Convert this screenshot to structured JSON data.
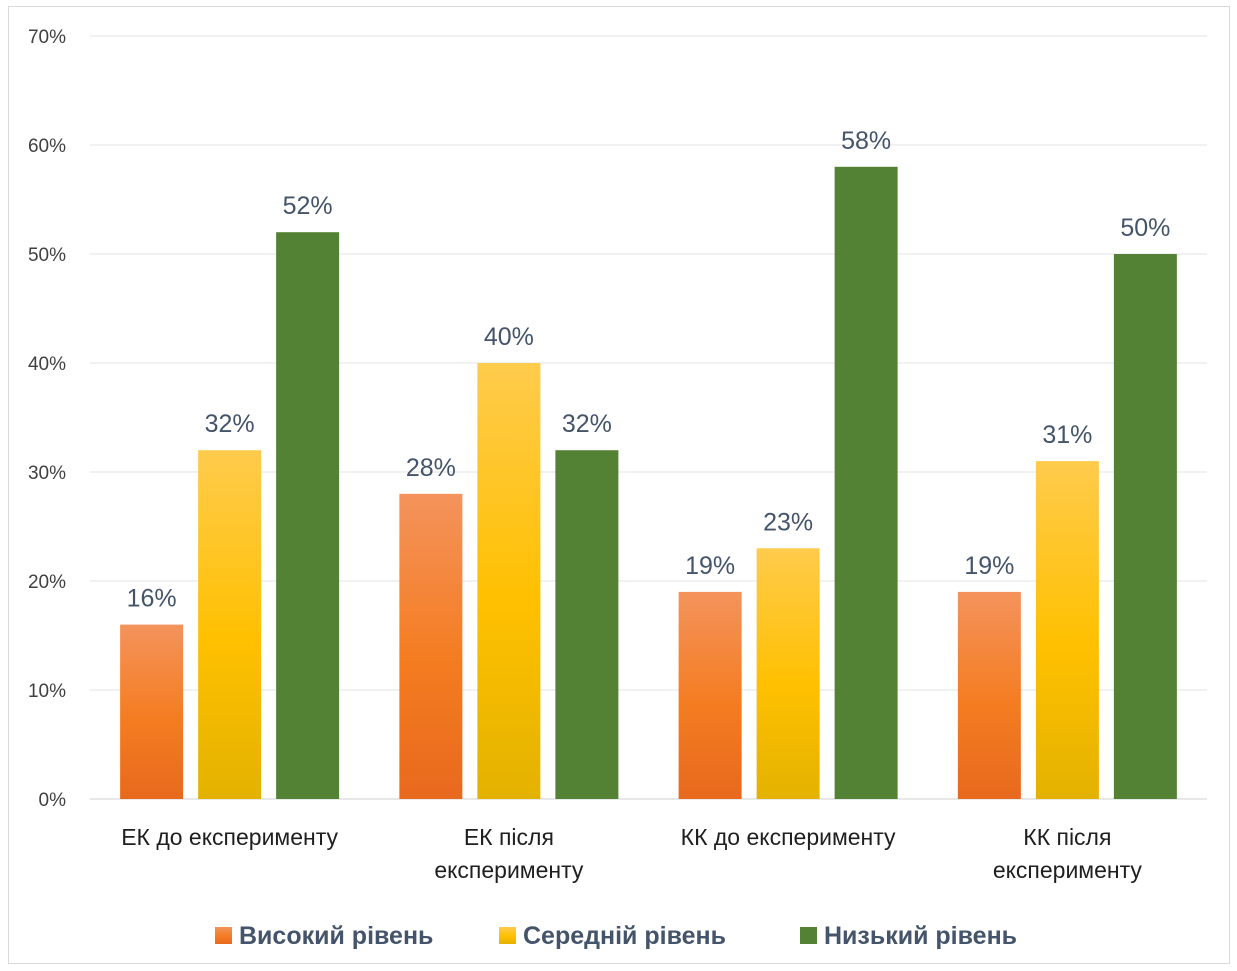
{
  "chart_data": {
    "type": "bar",
    "categories": [
      [
        "ЕК до експерименту"
      ],
      [
        "ЕК після",
        "експерименту"
      ],
      [
        "КК до експерименту"
      ],
      [
        "КК після",
        "експерименту"
      ]
    ],
    "series": [
      {
        "name": "Високий рівень",
        "values": [
          16,
          28,
          19,
          19
        ],
        "labels": [
          "16%",
          "28%",
          "19%",
          "19%"
        ],
        "color_top": "#f4935c",
        "color_mid": "#f47c20",
        "color_bottom": "#e8691e"
      },
      {
        "name": "Середній рівень",
        "values": [
          32,
          40,
          23,
          31
        ],
        "labels": [
          "32%",
          "40%",
          "23%",
          "31%"
        ],
        "color_top": "#ffcb4c",
        "color_mid": "#ffc000",
        "color_bottom": "#e3b200"
      },
      {
        "name": "Низький рівень",
        "values": [
          52,
          32,
          58,
          50
        ],
        "labels": [
          "52%",
          "32%",
          "58%",
          "50%"
        ],
        "color_top": "#548235",
        "color_mid": "#548235",
        "color_bottom": "#548235"
      }
    ],
    "ylim": [
      0,
      70
    ],
    "yticks": [
      0,
      10,
      20,
      30,
      40,
      50,
      60,
      70
    ],
    "ytick_labels": [
      "0%",
      "10%",
      "20%",
      "30%",
      "40%",
      "50%",
      "60%",
      "70%"
    ],
    "grid": true,
    "legend_position": "bottom",
    "title": "",
    "xlabel": "",
    "ylabel": ""
  }
}
